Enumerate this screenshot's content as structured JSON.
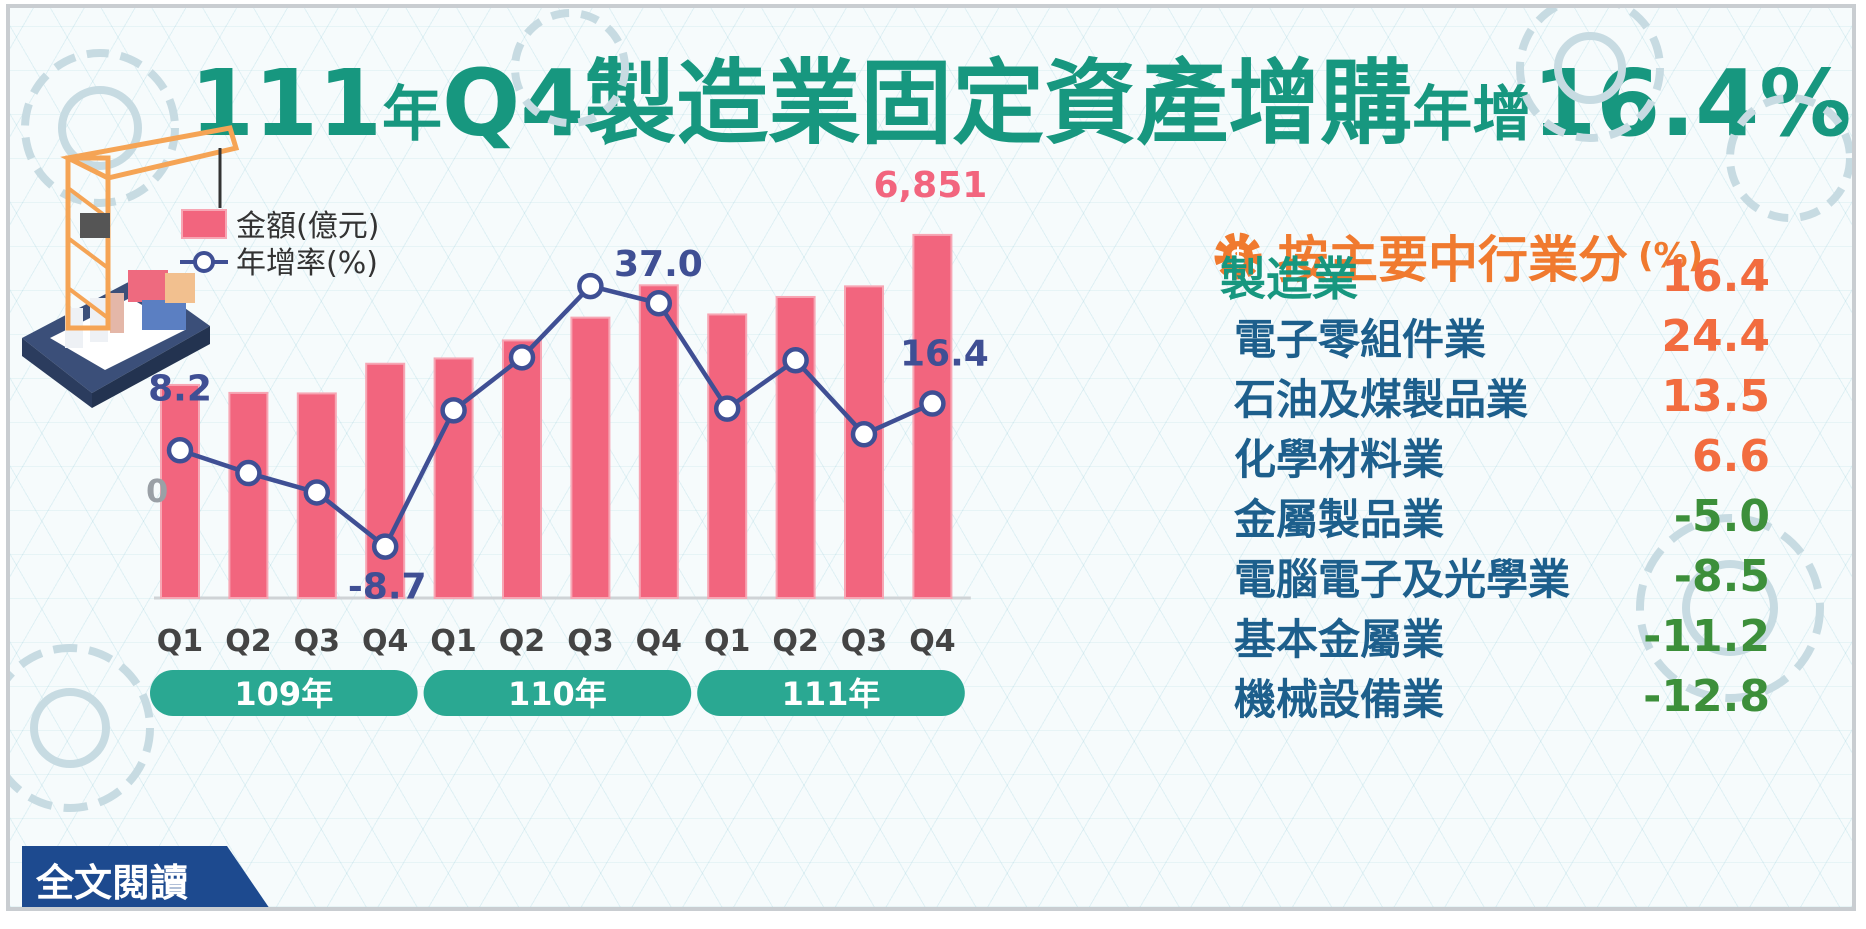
{
  "title": {
    "part1": "111",
    "part2": "年",
    "part3": "Q4製造業固定資產增購",
    "part4": "年增",
    "part5": "16.4%"
  },
  "legend": {
    "bar_label": "金額(億元)",
    "line_label": "年增率(%)"
  },
  "baseline_label": "0",
  "years": [
    "109年",
    "110年",
    "111年"
  ],
  "chart_data": {
    "type": "bar",
    "categories": [
      "Q1",
      "Q2",
      "Q3",
      "Q4",
      "Q1",
      "Q2",
      "Q3",
      "Q4",
      "Q1",
      "Q2",
      "Q3",
      "Q4"
    ],
    "groups": [
      "109年",
      "110年",
      "111年"
    ],
    "series": [
      {
        "name": "金額(億元)",
        "type": "bar",
        "values": [
          4020,
          3870,
          3860,
          4420,
          4520,
          4860,
          5290,
          5900,
          5350,
          5680,
          5880,
          6851
        ]
      },
      {
        "name": "年增率(%)",
        "type": "line",
        "values": [
          8.2,
          4.2,
          0.8,
          -8.7,
          15.2,
          24.5,
          37.0,
          34.0,
          15.5,
          24.0,
          11.0,
          16.4
        ]
      }
    ],
    "data_labels": [
      {
        "series": 0,
        "index": 11,
        "text": "6,851"
      },
      {
        "series": 1,
        "index": 0,
        "text": "8.2"
      },
      {
        "series": 1,
        "index": 3,
        "text": "-8.7"
      },
      {
        "series": 1,
        "index": 6,
        "text": "37.0"
      },
      {
        "series": 1,
        "index": 11,
        "text": "16.4"
      }
    ],
    "colors": {
      "bar": "#f2657e",
      "line": "#3f4f94",
      "axis": "#cfd3d6"
    }
  },
  "industry": {
    "title": "按主要中行業分",
    "unit": "(%)",
    "icon": "gear-dollar-icon",
    "rows": [
      {
        "name": "製造業",
        "value": "16.4",
        "color": "#f26c3f"
      },
      {
        "name": "電子零組件業",
        "value": "24.4",
        "color": "#f26c3f"
      },
      {
        "name": "石油及煤製品業",
        "value": "13.5",
        "color": "#f26c3f"
      },
      {
        "name": "化學材料業",
        "value": "6.6",
        "color": "#f26c3f"
      },
      {
        "name": "金屬製品業",
        "value": "-5.0",
        "color": "#3c8f3a"
      },
      {
        "name": "電腦電子及光學業",
        "value": "-8.5",
        "color": "#3c8f3a"
      },
      {
        "name": "基本金屬業",
        "value": "-11.2",
        "color": "#3c8f3a"
      },
      {
        "name": "機械設備業",
        "value": "-12.8",
        "color": "#3c8f3a"
      }
    ]
  },
  "read_more": "全文閱讀"
}
